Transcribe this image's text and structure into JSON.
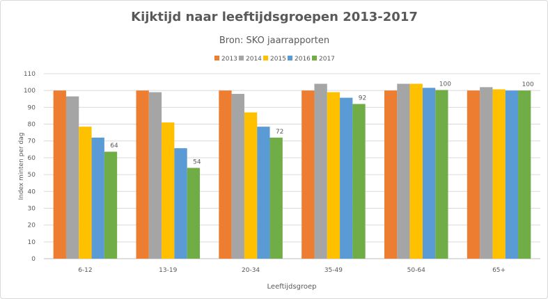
{
  "chart_data": {
    "type": "bar",
    "title": "Kijktijd naar leeftijdsgroepen 2013-2017",
    "subtitle": "Bron: SKO jaarrapporten",
    "xlabel": "Leeftijdsgroep",
    "ylabel": "Index minten per dag",
    "ylim": [
      0,
      110
    ],
    "yticks": [
      0,
      10,
      20,
      30,
      40,
      50,
      60,
      70,
      80,
      90,
      100,
      110
    ],
    "grid": true,
    "legend_position": "top",
    "categories": [
      "6-12",
      "13-19",
      "20-34",
      "35-49",
      "50-64",
      "65+"
    ],
    "series": [
      {
        "name": "2013",
        "color": "#ed7d31",
        "values": [
          100,
          100,
          100,
          100,
          100,
          100
        ]
      },
      {
        "name": "2014",
        "color": "#a5a5a5",
        "values": [
          96.5,
          99,
          98,
          104,
          104,
          102
        ]
      },
      {
        "name": "2015",
        "color": "#ffc000",
        "values": [
          78.5,
          81,
          87,
          99,
          104,
          100.7
        ]
      },
      {
        "name": "2016",
        "color": "#5b9bd5",
        "values": [
          72,
          65.7,
          78.5,
          95.7,
          101.6,
          100
        ]
      },
      {
        "name": "2017",
        "color": "#70ad47",
        "values": [
          63.6,
          54,
          72,
          92,
          100.3,
          100
        ],
        "labels": [
          "64",
          "54",
          "72",
          "92",
          "100",
          "100"
        ]
      }
    ]
  }
}
